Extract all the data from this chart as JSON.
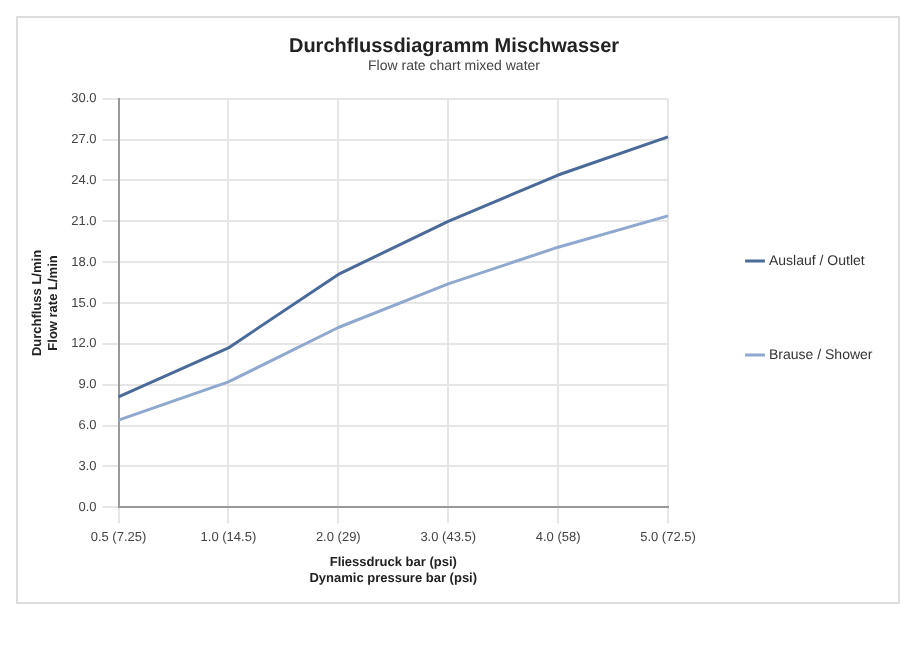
{
  "chart_data": {
    "type": "line",
    "title": "Durchflussdiagramm Mischwasser",
    "subtitle": "Flow rate chart mixed water",
    "xlabel": "Fliessdruck bar (psi)\nDynamic pressure bar (psi)",
    "ylabel": "Durchfluss L/min\nFlow rate L/min",
    "categories": [
      "0.5 (7.25)",
      "1.0 (14.5)",
      "2.0 (29)",
      "3.0 (43.5)",
      "4.0 (58)",
      "5.0 (72.5)"
    ],
    "series": [
      {
        "name": "Auslauf / Outlet",
        "color": "#4a6a9a",
        "values": [
          8.1,
          11.7,
          17.1,
          21.0,
          24.4,
          27.2
        ]
      },
      {
        "name": "Brause / Shower",
        "color": "#8fa8cf",
        "values": [
          6.4,
          9.2,
          13.2,
          16.4,
          19.1,
          21.4
        ]
      }
    ],
    "ylim": [
      0,
      30
    ],
    "yticks": [
      {
        "value": 0,
        "label": "0.0"
      },
      {
        "value": 3,
        "label": "3.0"
      },
      {
        "value": 6,
        "label": "6.0"
      },
      {
        "value": 9,
        "label": "9.0"
      },
      {
        "value": 12,
        "label": "12.0"
      },
      {
        "value": 15,
        "label": "15.0"
      },
      {
        "value": 18,
        "label": "18.0"
      },
      {
        "value": 21,
        "label": "21.0"
      },
      {
        "value": 24,
        "label": "24.0"
      },
      {
        "value": 27,
        "label": "27.0"
      },
      {
        "value": 30,
        "label": "30.0"
      }
    ],
    "grid": true,
    "legend": "right",
    "marker": "none",
    "line_style": "solid"
  }
}
